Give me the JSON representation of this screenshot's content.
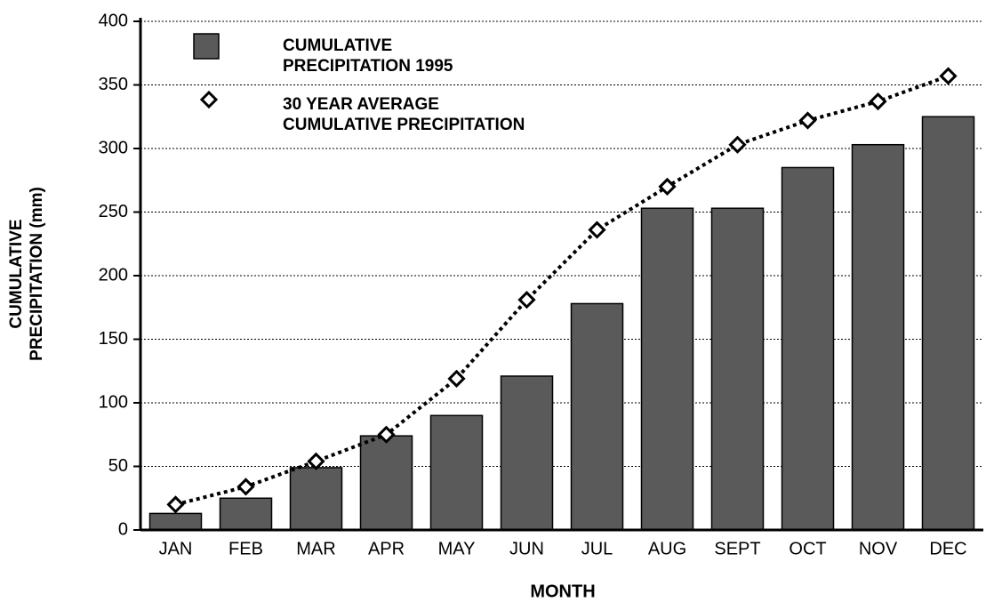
{
  "chart_data": {
    "type": "bar_line",
    "xlabel": "MONTH",
    "ylabel": "CUMULATIVE PRECIPITATION (mm)",
    "categories": [
      "JAN",
      "FEB",
      "MAR",
      "APR",
      "MAY",
      "JUN",
      "JUL",
      "AUG",
      "SEPT",
      "OCT",
      "NOV",
      "DEC"
    ],
    "series": [
      {
        "name": "CUMULATIVE PRECIPITATION 1995",
        "kind": "bar",
        "color": "#5a5a5a",
        "values": [
          13,
          25,
          49,
          74,
          90,
          121,
          178,
          253,
          253,
          285,
          303,
          325
        ]
      },
      {
        "name": "30 YEAR AVERAGE CUMULATIVE PRECIPITATION",
        "kind": "line",
        "color": "#000000",
        "values": [
          20,
          34,
          54,
          75,
          119,
          181,
          236,
          270,
          303,
          322,
          337,
          357
        ]
      }
    ],
    "ylim": [
      0,
      400
    ],
    "yticks": [
      0,
      50,
      100,
      150,
      200,
      250,
      300,
      350,
      400
    ],
    "grid": true,
    "legend": "upper left"
  }
}
